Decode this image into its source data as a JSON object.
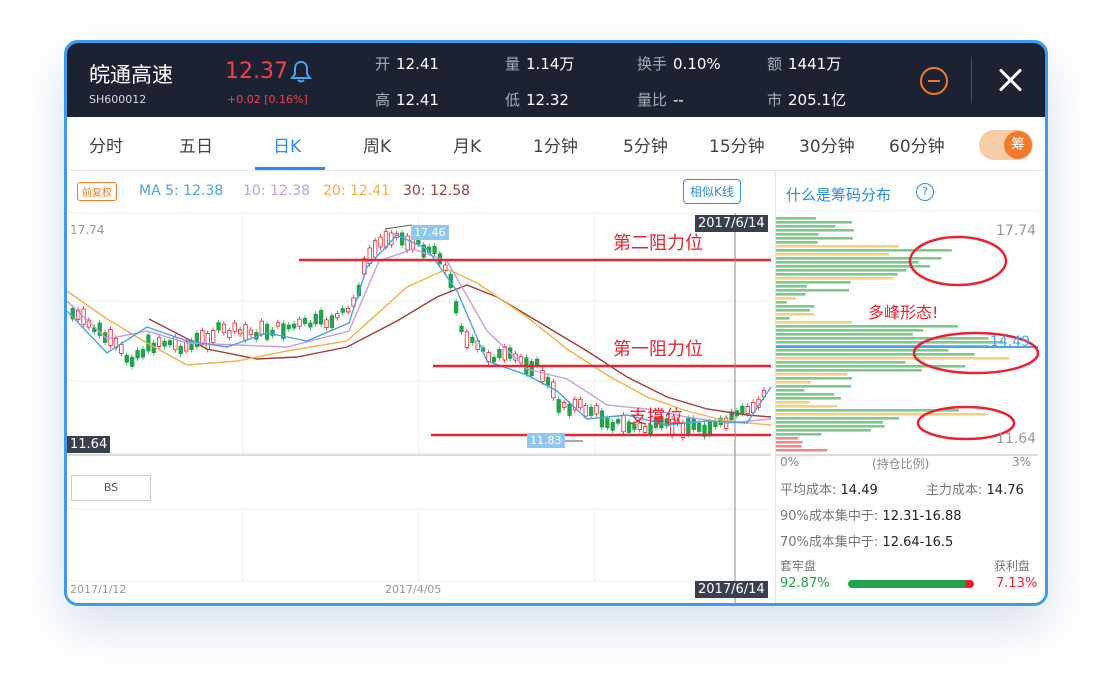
{
  "header": {
    "stock_name": "皖通高速",
    "stock_code": "SH600012",
    "price": "12.37",
    "change": "+0.02  [0.16%]",
    "quotes": [
      {
        "label": "开",
        "value": "12.41"
      },
      {
        "label": "量",
        "value": "1.14万"
      },
      {
        "label": "换手",
        "value": "0.10%"
      },
      {
        "label": "额",
        "value": "1441万"
      },
      {
        "label": "高",
        "value": "12.41"
      },
      {
        "label": "低",
        "value": "12.32"
      },
      {
        "label": "量比",
        "value": "--"
      },
      {
        "label": "市",
        "value": "205.1亿"
      }
    ]
  },
  "tabs": [
    {
      "label": "分时"
    },
    {
      "label": "五日"
    },
    {
      "label": "日K"
    },
    {
      "label": "周K"
    },
    {
      "label": "月K"
    },
    {
      "label": "1分钟"
    },
    {
      "label": "5分钟"
    },
    {
      "label": "15分钟"
    },
    {
      "label": "30分钟"
    },
    {
      "label": "60分钟"
    }
  ],
  "active_tab": "日K",
  "toggle_label": "筹",
  "chart": {
    "adjust_badge": "前复权",
    "ma_labels": [
      "MA 5: 12.38",
      "10: 12.38",
      "20: 12.41",
      "30: 12.58"
    ],
    "ma_colors": [
      "#4aa3e6",
      "#c79ce6",
      "#f1b347",
      "#a33b3b"
    ],
    "similar_button": "相似K线",
    "price_high_label": "17.74",
    "price_low_label": "11.64",
    "peak_tag": "17.46",
    "trough_tag": "11.83",
    "crosshair_date": "2017/6/14",
    "x_dates": [
      "2017/1/12",
      "2017/4/05",
      "2017/6/14"
    ],
    "bs_button": "BS",
    "annotations": [
      "第二阻力位",
      "第一阻力位",
      "支撑位"
    ],
    "up_color": "#e62433",
    "down_color": "#22a34b"
  },
  "chip_panel": {
    "title": "什么是筹码分布",
    "help_icon": "question-circle-icon",
    "axis_high": "17.74",
    "axis_mid": "14.49",
    "axis_low": "11.64",
    "annotation": "多峰形态!",
    "x_left": "0%",
    "x_mid": "(持仓比例)",
    "x_right": "3%",
    "avg_cost_label": "平均成本:",
    "avg_cost": "14.49",
    "main_cost_label": "主力成本:",
    "main_cost": "14.76",
    "conc90_label": "90%成本集中于:",
    "conc90": "12.31-16.88",
    "conc70_label": "70%成本集中于:",
    "conc70": "12.64-16.5",
    "trapped_label": "套牢盘",
    "trapped_pct": "92.87%",
    "profit_label": "获利盘",
    "profit_pct": "7.13%"
  }
}
